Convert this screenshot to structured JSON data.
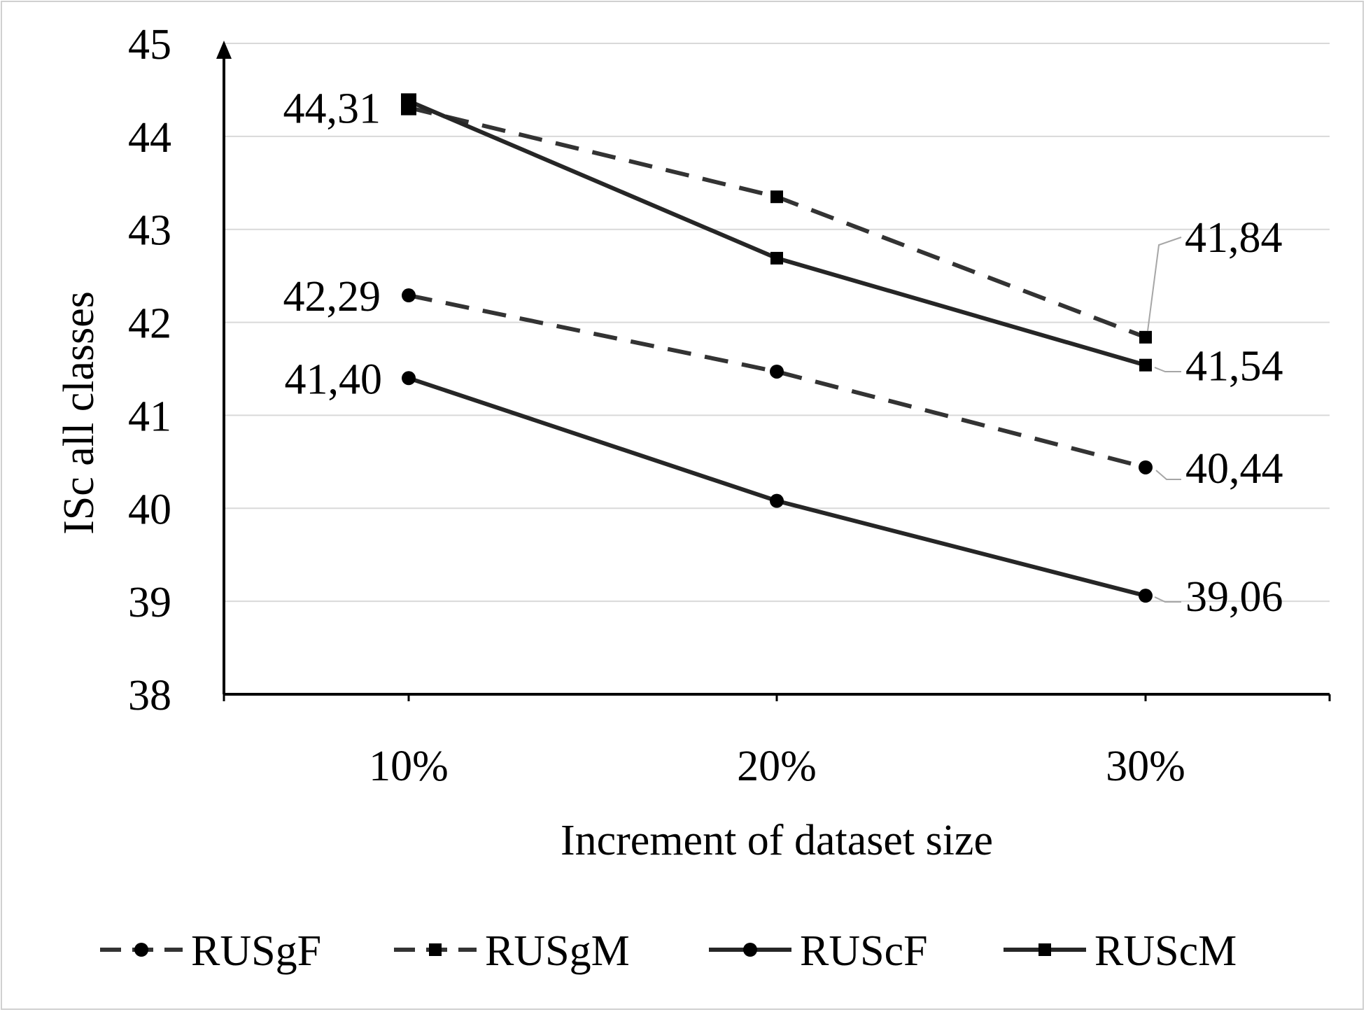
{
  "chart_data": {
    "type": "line",
    "title": "",
    "xlabel": "Increment of dataset size",
    "ylabel": "ISc  all classes",
    "categories": [
      "10%",
      "20%",
      "30%"
    ],
    "ylim": [
      38,
      45
    ],
    "yticks": [
      "45",
      "44",
      "43",
      "42",
      "41",
      "40",
      "39",
      "38"
    ],
    "grid": true,
    "legend": "bottom",
    "series": [
      {
        "name": "RUSgF",
        "values": [
          42.29,
          41.47,
          40.44
        ],
        "style": "dashed",
        "marker": "circle",
        "color": "#333333"
      },
      {
        "name": "RUSgM",
        "values": [
          44.31,
          43.35,
          41.84
        ],
        "style": "dashed",
        "marker": "square",
        "color": "#333333"
      },
      {
        "name": "RUScF",
        "values": [
          41.4,
          40.08,
          39.06
        ],
        "style": "solid",
        "marker": "circle",
        "color": "#262626"
      },
      {
        "name": "RUScM",
        "values": [
          44.38,
          42.69,
          41.54
        ],
        "style": "solid",
        "marker": "square",
        "color": "#262626"
      }
    ],
    "data_labels": [
      {
        "series": "RUSgM",
        "index": 0,
        "text": "44,31"
      },
      {
        "series": "RUSgF",
        "index": 0,
        "text": "42,29"
      },
      {
        "series": "RUScF",
        "index": 0,
        "text": "41,40"
      },
      {
        "series": "RUSgM",
        "index": 2,
        "text": "41,84"
      },
      {
        "series": "RUScM",
        "index": 2,
        "text": "41,54"
      },
      {
        "series": "RUSgF",
        "index": 2,
        "text": "40,44"
      },
      {
        "series": "RUScF",
        "index": 2,
        "text": "39,06"
      }
    ]
  }
}
